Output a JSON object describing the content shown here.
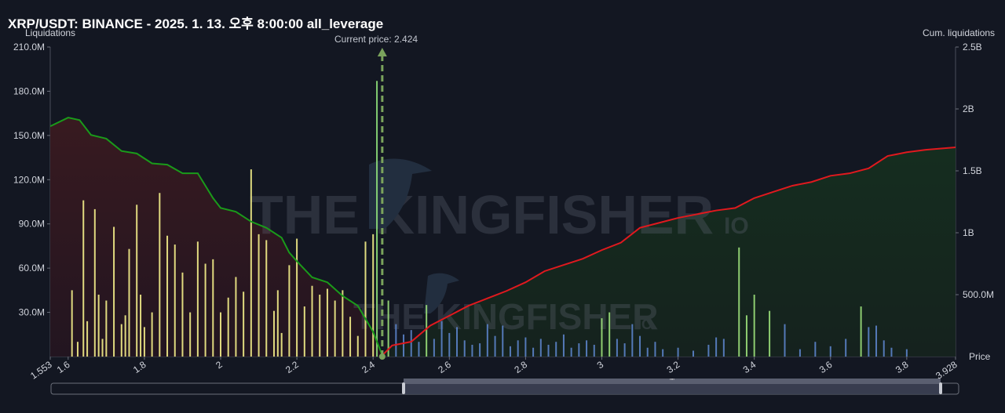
{
  "title": "XRP/USDT: BINANCE - 2025. 1. 13. 오후 8:00:00 all_leverage",
  "watermark": {
    "brand": "THE KINGFISHER",
    "suffix": "IO"
  },
  "current_price_label": "Current price: 2.424",
  "slider": {
    "handle_label": "\"\""
  },
  "colors": {
    "short_bars": "#f5f08a",
    "long_bars": "#5b83c9",
    "long_cum_line": "#1a9b1a",
    "short_cum_line": "#e0191e",
    "current_price": "#7aa35c"
  },
  "chart_data": {
    "type": "bar",
    "title": "XRP/USDT: BINANCE - 2025. 1. 13. 오후 8:00:00 all_leverage",
    "xlabel": "Price",
    "ylabel": "Liquidations",
    "y2label": "Cum. liquidations",
    "xlim": [
      1.553,
      3.928
    ],
    "ylim": [
      0,
      210000000
    ],
    "y2lim": [
      0,
      2500000000
    ],
    "grid": false,
    "current_price": 2.424,
    "x_tick_labels": [
      "1.553",
      "1.6",
      "1.8",
      "2",
      "2.2",
      "2.4",
      "2.6",
      "2.8",
      "3",
      "3.2",
      "3.4",
      "3.6",
      "3.8",
      "3.928"
    ],
    "y_tick_labels": [
      "30.0M",
      "60.0M",
      "90.0M",
      "120.0M",
      "150.0M",
      "180.0M",
      "210.0M"
    ],
    "y2_tick_labels": [
      "500.0M",
      "1B",
      "1.5B",
      "2B",
      "2.5B"
    ],
    "bars_below_price": {
      "x": [
        1.61,
        1.625,
        1.64,
        1.65,
        1.67,
        1.68,
        1.69,
        1.7,
        1.72,
        1.74,
        1.75,
        1.76,
        1.78,
        1.79,
        1.8,
        1.82,
        1.84,
        1.86,
        1.88,
        1.9,
        1.92,
        1.94,
        1.96,
        1.98,
        2.0,
        2.02,
        2.04,
        2.06,
        2.08,
        2.1,
        2.12,
        2.14,
        2.15,
        2.16,
        2.18,
        2.2,
        2.22,
        2.24,
        2.26,
        2.28,
        2.3,
        2.32,
        2.34,
        2.36,
        2.38,
        2.4,
        2.41
      ],
      "values": [
        45000000,
        10000000,
        106000000,
        24000000,
        100000000,
        42000000,
        12000000,
        38000000,
        88000000,
        22000000,
        28000000,
        73000000,
        103000000,
        42000000,
        20000000,
        30000000,
        111000000,
        82000000,
        76000000,
        57000000,
        30000000,
        78000000,
        63000000,
        66000000,
        30000000,
        40000000,
        54000000,
        44000000,
        127000000,
        83000000,
        79000000,
        31000000,
        45000000,
        16000000,
        62000000,
        80000000,
        34000000,
        48000000,
        42000000,
        46000000,
        38000000,
        45000000,
        27000000,
        14000000,
        78000000,
        83000000,
        187000000
      ]
    },
    "bars_above_price": {
      "x": [
        2.44,
        2.46,
        2.48,
        2.5,
        2.52,
        2.54,
        2.56,
        2.58,
        2.6,
        2.62,
        2.64,
        2.66,
        2.68,
        2.7,
        2.72,
        2.74,
        2.76,
        2.78,
        2.8,
        2.82,
        2.84,
        2.86,
        2.88,
        2.9,
        2.92,
        2.94,
        2.96,
        2.98,
        3.0,
        3.02,
        3.04,
        3.06,
        3.08,
        3.1,
        3.12,
        3.14,
        3.16,
        3.2,
        3.24,
        3.28,
        3.3,
        3.32,
        3.36,
        3.38,
        3.4,
        3.44,
        3.48,
        3.52,
        3.56,
        3.6,
        3.64,
        3.68,
        3.7,
        3.72,
        3.74,
        3.76,
        3.8
      ],
      "values": [
        38000000,
        22000000,
        15000000,
        18000000,
        10000000,
        35000000,
        12000000,
        24000000,
        16000000,
        20000000,
        11000000,
        8000000,
        9000000,
        22000000,
        14000000,
        21000000,
        7000000,
        11000000,
        13000000,
        6000000,
        12000000,
        8000000,
        10000000,
        15000000,
        6000000,
        9000000,
        11000000,
        8000000,
        26000000,
        30000000,
        12000000,
        9000000,
        22000000,
        14000000,
        6000000,
        10000000,
        5000000,
        6000000,
        4000000,
        8000000,
        13000000,
        12000000,
        74000000,
        28000000,
        42000000,
        31000000,
        22000000,
        5000000,
        10000000,
        7000000,
        12000000,
        34000000,
        20000000,
        21000000,
        11000000,
        6000000,
        5000000
      ]
    },
    "series": [
      {
        "x": [
          1.553,
          1.6,
          1.63,
          1.66,
          1.7,
          1.74,
          1.78,
          1.82,
          1.86,
          1.9,
          1.94,
          1.98,
          2.0,
          2.04,
          2.08,
          2.12,
          2.16,
          2.18,
          2.2,
          2.24,
          2.28,
          2.32,
          2.36,
          2.4,
          2.424
        ],
        "values": [
          1860000000,
          1930000000,
          1910000000,
          1790000000,
          1760000000,
          1660000000,
          1640000000,
          1560000000,
          1550000000,
          1480000000,
          1480000000,
          1280000000,
          1200000000,
          1170000000,
          1090000000,
          1040000000,
          960000000,
          840000000,
          770000000,
          640000000,
          600000000,
          490000000,
          410000000,
          200000000,
          10000000
        ]
      },
      {
        "x": [
          2.424,
          2.45,
          2.5,
          2.55,
          2.6,
          2.65,
          2.7,
          2.75,
          2.8,
          2.85,
          2.9,
          2.95,
          3.0,
          3.05,
          3.1,
          3.15,
          3.2,
          3.25,
          3.3,
          3.35,
          3.4,
          3.45,
          3.5,
          3.55,
          3.6,
          3.65,
          3.7,
          3.75,
          3.8,
          3.85,
          3.928
        ],
        "values": [
          10000000,
          90000000,
          120000000,
          250000000,
          330000000,
          410000000,
          470000000,
          530000000,
          600000000,
          690000000,
          740000000,
          790000000,
          860000000,
          920000000,
          1040000000,
          1080000000,
          1120000000,
          1150000000,
          1180000000,
          1200000000,
          1280000000,
          1330000000,
          1380000000,
          1410000000,
          1460000000,
          1480000000,
          1520000000,
          1620000000,
          1650000000,
          1670000000,
          1690000000
        ]
      }
    ]
  }
}
